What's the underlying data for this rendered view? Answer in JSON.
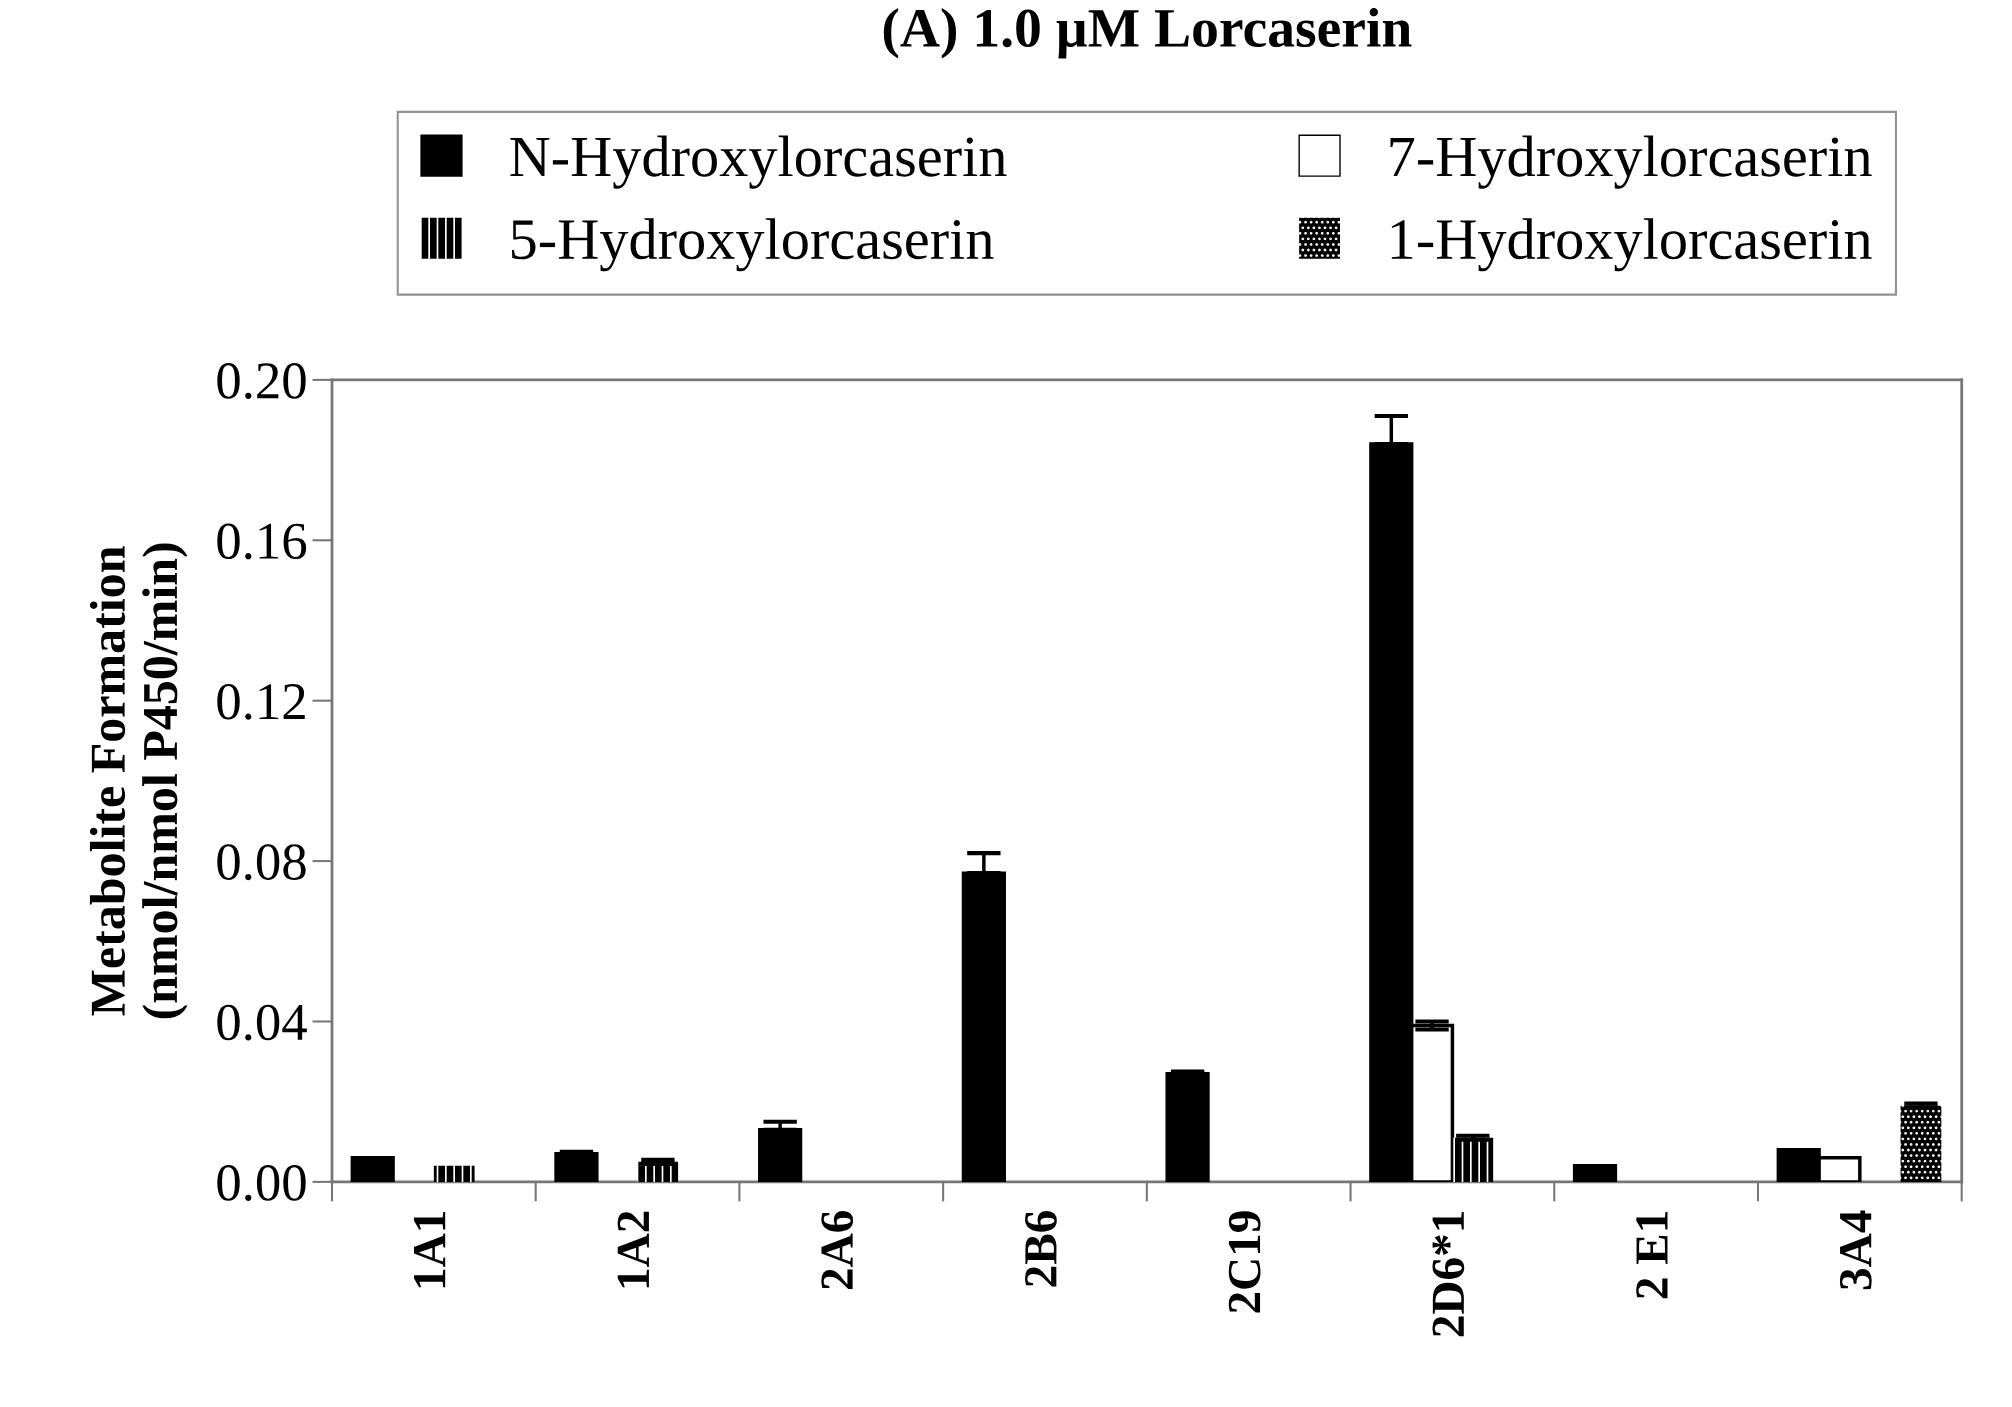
{
  "chart_data": {
    "type": "bar",
    "title": "(A) 1.0 µM Lorcaserin",
    "ylabel": "Metabolite Formation\n(nmol/nmol P450/min)",
    "categories": [
      "1A1",
      "1A2",
      "2A6",
      "2B6",
      "2C19",
      "2D6*1",
      "2 E1",
      "3A4"
    ],
    "series": [
      {
        "name": "N-Hydroxylorcaserin",
        "color": "#000000",
        "values": [
          0.006,
          0.007,
          0.013,
          0.077,
          0.027,
          0.184,
          0.004,
          0.008
        ],
        "errors": [
          null,
          0.0005,
          0.002,
          0.005,
          0.0005,
          0.007,
          null,
          null
        ]
      },
      {
        "name": "7-Hydroxylorcaserin",
        "color": "#ffffff",
        "values": [
          null,
          null,
          null,
          null,
          null,
          0.039,
          null,
          0.006
        ],
        "errors": [
          null,
          null,
          null,
          null,
          null,
          0.001,
          null,
          null
        ]
      },
      {
        "name": "5-Hydroxylorcaserin",
        "color": "#000000",
        "values": [
          0.004,
          0.005,
          null,
          null,
          null,
          0.011,
          null,
          null
        ],
        "errors": [
          null,
          0.0005,
          null,
          null,
          null,
          0.0005,
          null,
          null
        ]
      },
      {
        "name": "1-Hydroxylorcaserin",
        "color": "#000000",
        "values": [
          null,
          null,
          null,
          null,
          null,
          null,
          null,
          0.019
        ],
        "errors": [
          null,
          null,
          null,
          null,
          null,
          null,
          null,
          0.0005
        ]
      }
    ],
    "ylim": [
      0,
      0.2
    ],
    "yticks": [
      {
        "value": 0,
        "label": "0.00"
      },
      {
        "value": 0.04,
        "label": "0.04"
      },
      {
        "value": 0.08,
        "label": "0.08"
      },
      {
        "value": 0.12,
        "label": "0.12"
      },
      {
        "value": 0.16,
        "label": "0.16"
      },
      {
        "value": 0.2,
        "label": "0.20"
      }
    ],
    "legend": "top",
    "grid": false
  }
}
